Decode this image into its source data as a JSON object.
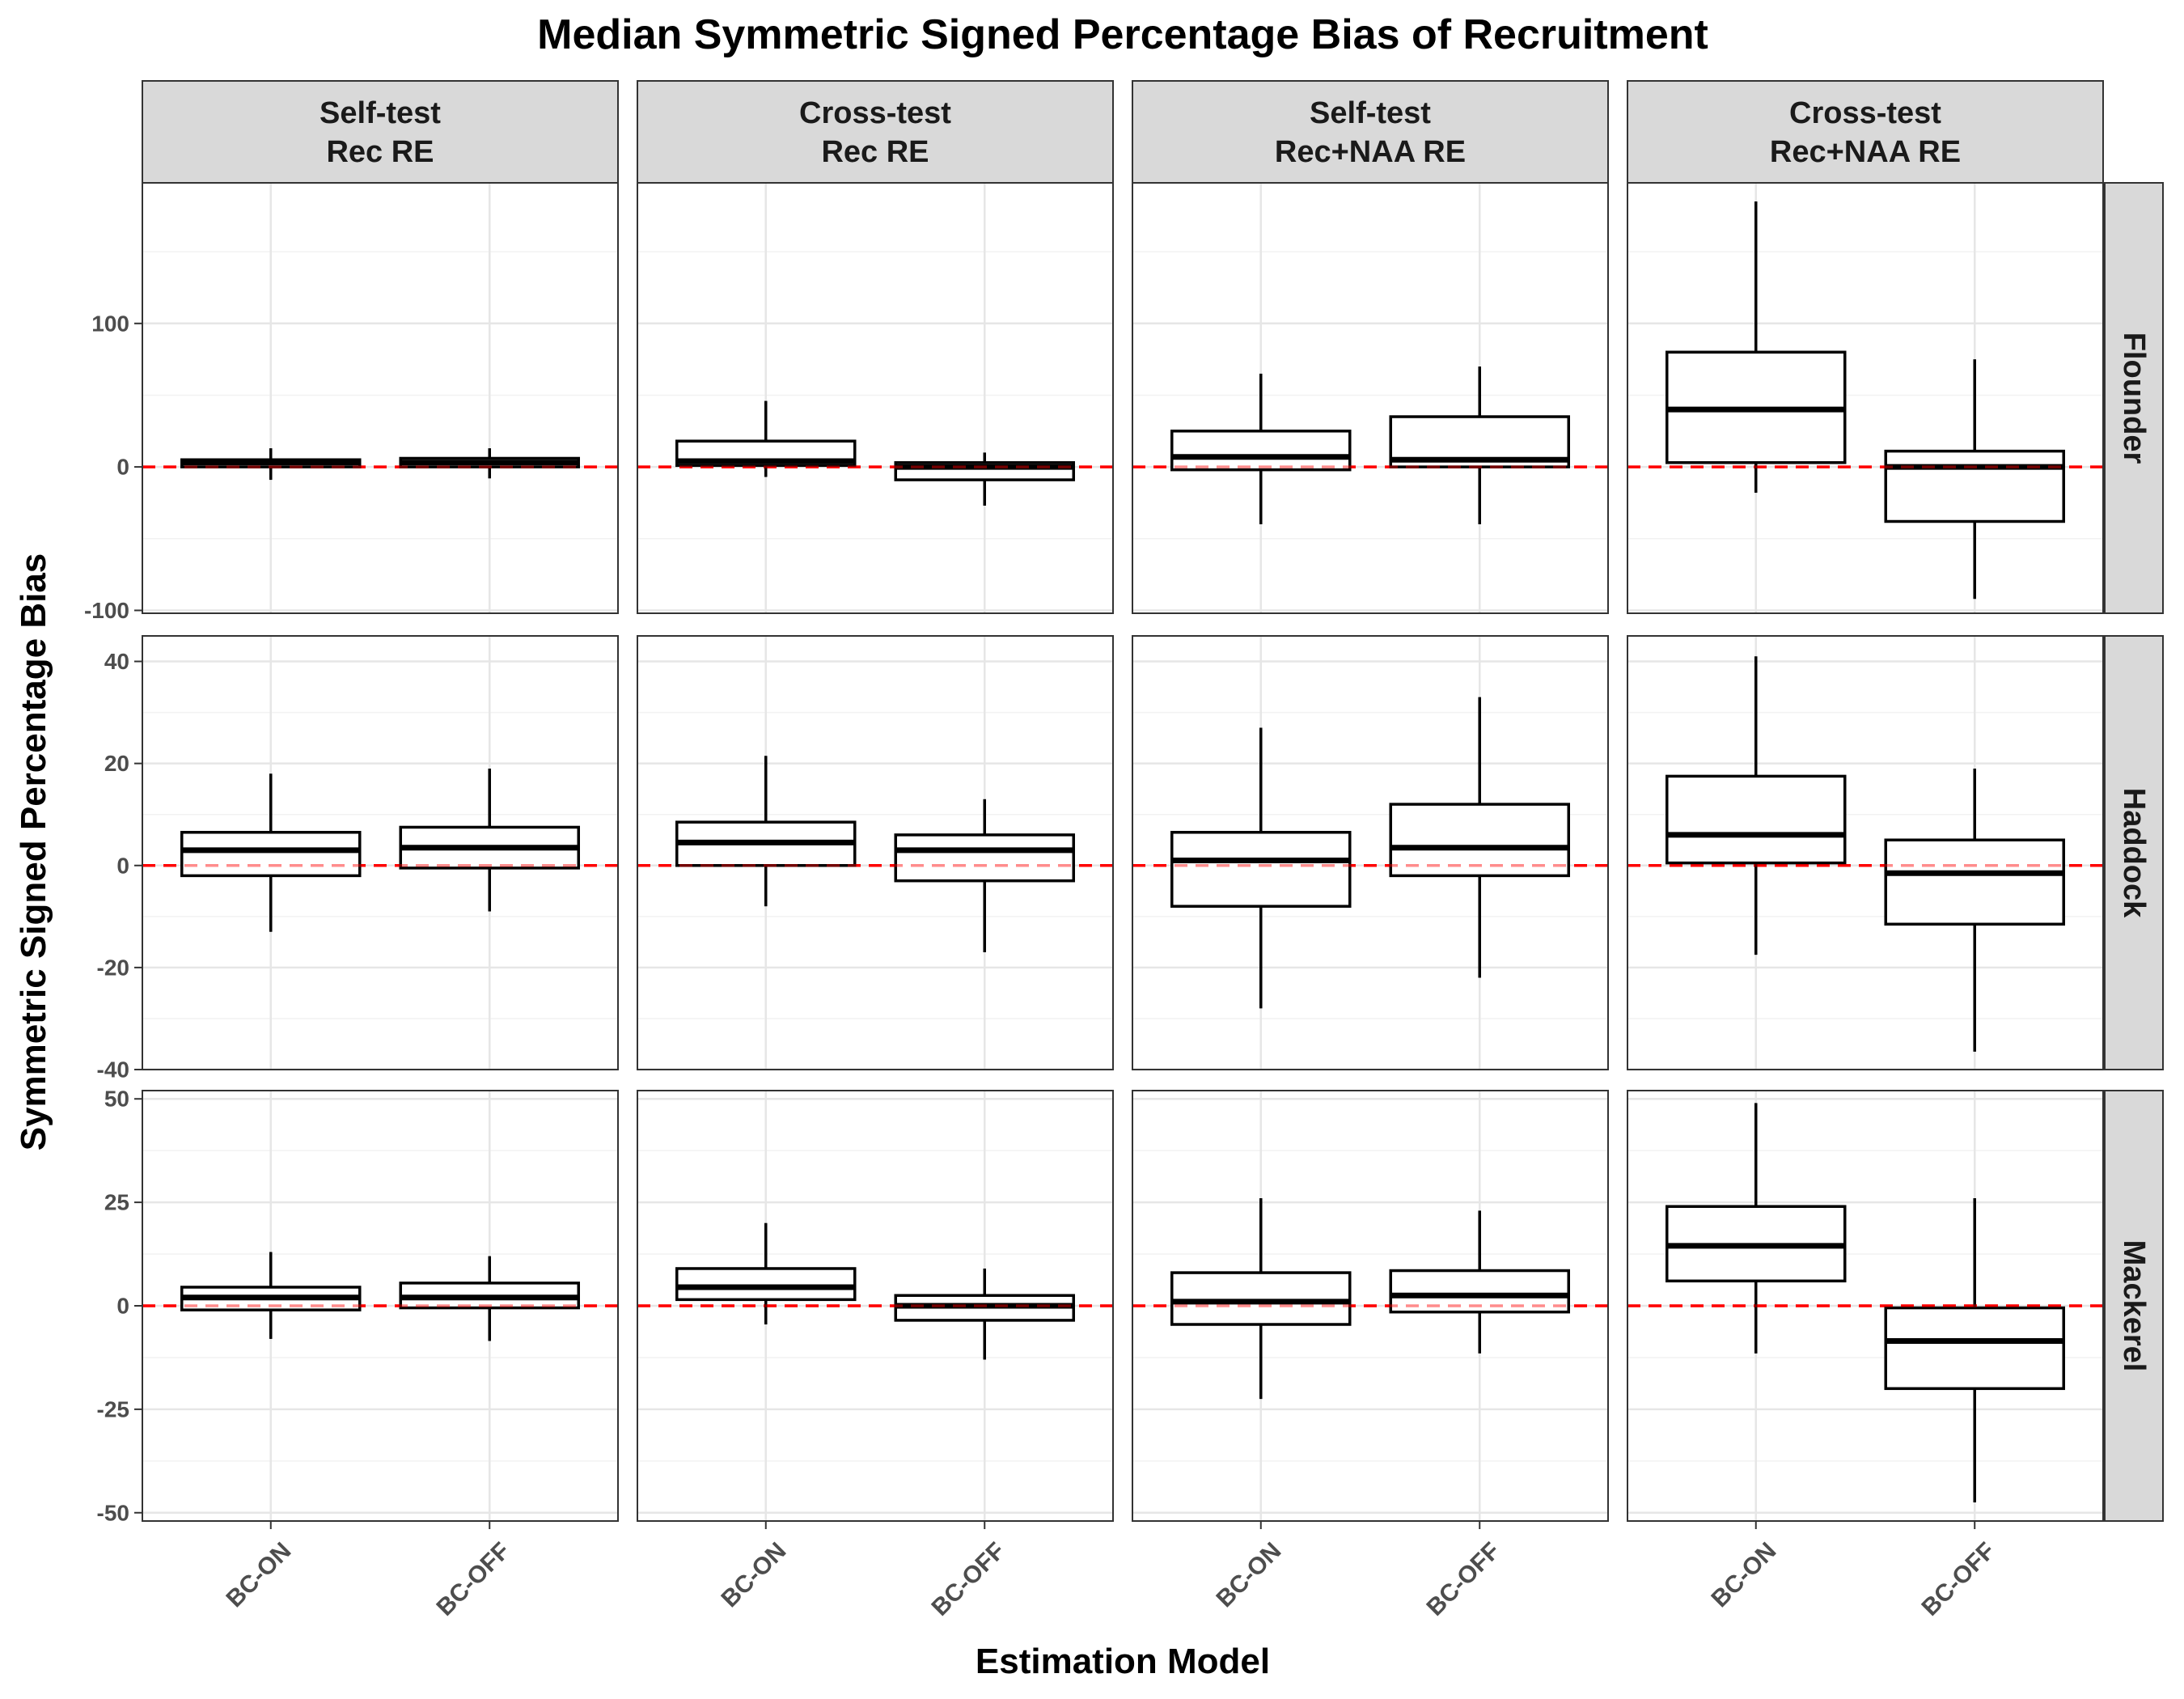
{
  "chart_data": {
    "type": "box",
    "title": "Median Symmetric Signed Percentage Bias of Recruitment",
    "xlabel": "Estimation Model",
    "ylabel": "Symmetric Signed Percentage Bias",
    "categories": [
      "BC-ON",
      "BC-OFF"
    ],
    "columns": [
      {
        "line1": "Self-test",
        "line2": "Rec RE"
      },
      {
        "line1": "Cross-test",
        "line2": "Rec RE"
      },
      {
        "line1": "Self-test",
        "line2": "Rec+NAA RE"
      },
      {
        "line1": "Cross-test",
        "line2": "Rec+NAA RE"
      }
    ],
    "rows": [
      {
        "name": "Flounder",
        "ylim": [
          -102,
          198
        ],
        "yticks": [
          -100,
          0,
          100
        ],
        "ytick_labels": [
          "-100",
          "0",
          "100"
        ],
        "minor_ticks": [
          -50,
          50,
          150
        ]
      },
      {
        "name": "Haddock",
        "ylim": [
          -40,
          45
        ],
        "yticks": [
          -40,
          -20,
          0,
          20,
          40
        ],
        "ytick_labels": [
          "-40",
          "-20",
          "0",
          "20",
          "40"
        ],
        "minor_ticks": [
          -30,
          -10,
          10,
          30
        ]
      },
      {
        "name": "Mackerel",
        "ylim": [
          -52,
          52
        ],
        "yticks": [
          -50,
          -25,
          0,
          25,
          50
        ],
        "ytick_labels": [
          "-50",
          "-25",
          "0",
          "25",
          "50"
        ],
        "minor_ticks": [
          -37.5,
          -12.5,
          12.5,
          37.5
        ]
      }
    ],
    "reference_line": {
      "y": 0,
      "color": "#ff0000",
      "style": "dashed"
    },
    "boxes": [
      [
        [
          {
            "category": "BC-ON",
            "min": -9,
            "q1": 0,
            "median": 3,
            "q3": 5,
            "max": 13
          },
          {
            "category": "BC-OFF",
            "min": -8,
            "q1": 0,
            "median": 3,
            "q3": 6,
            "max": 13
          }
        ],
        [
          {
            "category": "BC-ON",
            "min": -7,
            "q1": 1,
            "median": 4,
            "q3": 18,
            "max": 46
          },
          {
            "category": "BC-OFF",
            "min": -27,
            "q1": -9,
            "median": 0,
            "q3": 3,
            "max": 10
          }
        ],
        [
          {
            "category": "BC-ON",
            "min": -40,
            "q1": -2,
            "median": 7,
            "q3": 25,
            "max": 65
          },
          {
            "category": "BC-OFF",
            "min": -40,
            "q1": 0,
            "median": 5,
            "q3": 35,
            "max": 70
          }
        ],
        [
          {
            "category": "BC-ON",
            "min": -18,
            "q1": 3,
            "median": 40,
            "q3": 80,
            "max": 185
          },
          {
            "category": "BC-OFF",
            "min": -92,
            "q1": -38,
            "median": 0,
            "q3": 11,
            "max": 75
          }
        ]
      ],
      [
        [
          {
            "category": "BC-ON",
            "min": -13,
            "q1": -2,
            "median": 3,
            "q3": 6.5,
            "max": 18
          },
          {
            "category": "BC-OFF",
            "min": -9,
            "q1": -0.5,
            "median": 3.5,
            "q3": 7.5,
            "max": 19
          }
        ],
        [
          {
            "category": "BC-ON",
            "min": -8,
            "q1": 0,
            "median": 4.5,
            "q3": 8.5,
            "max": 21.5
          },
          {
            "category": "BC-OFF",
            "min": -17,
            "q1": -3,
            "median": 3,
            "q3": 6,
            "max": 13
          }
        ],
        [
          {
            "category": "BC-ON",
            "min": -28,
            "q1": -8,
            "median": 1,
            "q3": 6.5,
            "max": 27
          },
          {
            "category": "BC-OFF",
            "min": -22,
            "q1": -2,
            "median": 3.5,
            "q3": 12,
            "max": 33
          }
        ],
        [
          {
            "category": "BC-ON",
            "min": -17.5,
            "q1": 0.5,
            "median": 6,
            "q3": 17.5,
            "max": 41
          },
          {
            "category": "BC-OFF",
            "min": -36.5,
            "q1": -11.5,
            "median": -1.5,
            "q3": 5,
            "max": 19
          }
        ]
      ],
      [
        [
          {
            "category": "BC-ON",
            "min": -8,
            "q1": -1,
            "median": 2,
            "q3": 4.5,
            "max": 13
          },
          {
            "category": "BC-OFF",
            "min": -8.5,
            "q1": -0.5,
            "median": 2,
            "q3": 5.5,
            "max": 12
          }
        ],
        [
          {
            "category": "BC-ON",
            "min": -4.5,
            "q1": 1.5,
            "median": 4.5,
            "q3": 9,
            "max": 20
          },
          {
            "category": "BC-OFF",
            "min": -13,
            "q1": -3.5,
            "median": 0,
            "q3": 2.5,
            "max": 9
          }
        ],
        [
          {
            "category": "BC-ON",
            "min": -22.5,
            "q1": -4.5,
            "median": 1,
            "q3": 8,
            "max": 26
          },
          {
            "category": "BC-OFF",
            "min": -11.5,
            "q1": -1.5,
            "median": 2.5,
            "q3": 8.5,
            "max": 23
          }
        ],
        [
          {
            "category": "BC-ON",
            "min": -11.5,
            "q1": 6,
            "median": 14.5,
            "q3": 24,
            "max": 49
          },
          {
            "category": "BC-OFF",
            "min": -47.5,
            "q1": -20,
            "median": -8.5,
            "q3": -0.5,
            "max": 26
          }
        ]
      ]
    ]
  }
}
